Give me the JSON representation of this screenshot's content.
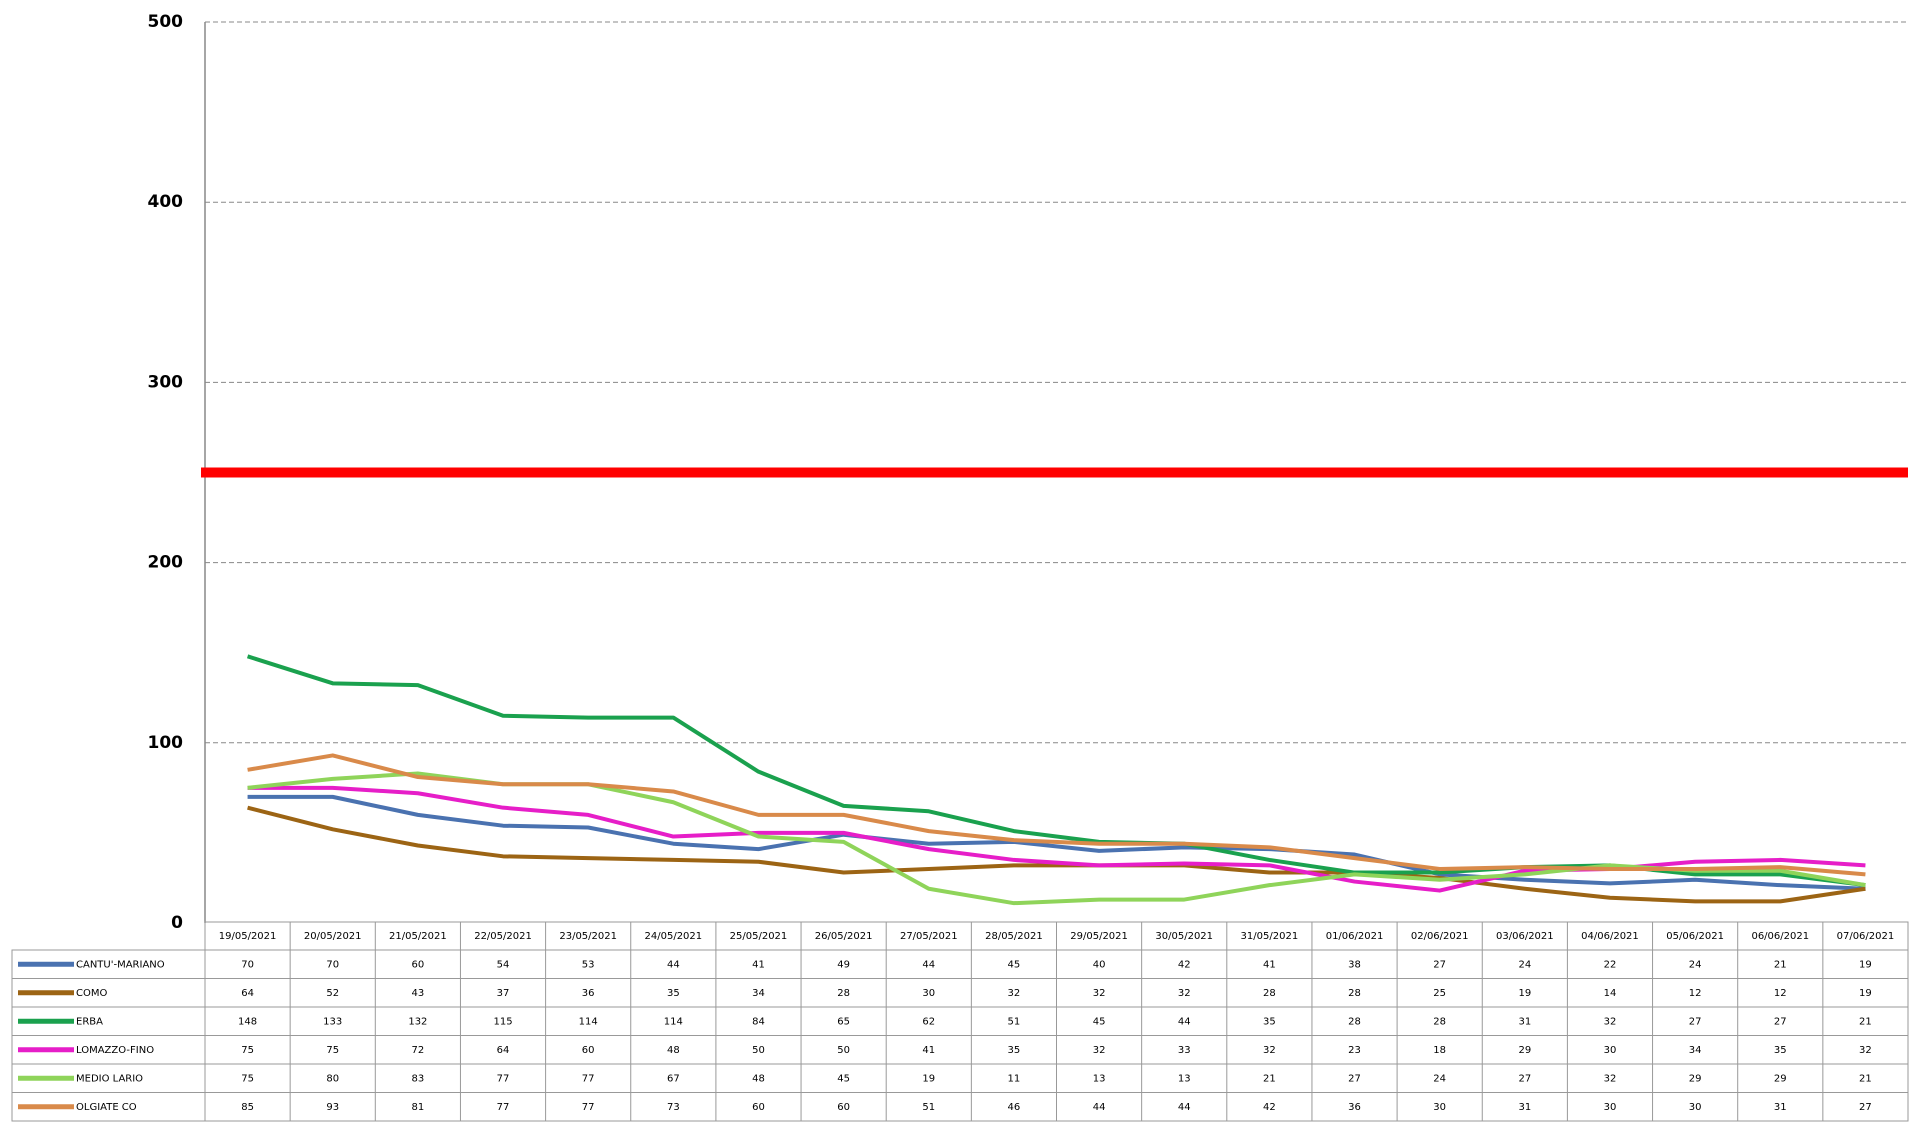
{
  "chart_data": {
    "type": "line",
    "categories": [
      "19/05/2021",
      "20/05/2021",
      "21/05/2021",
      "22/05/2021",
      "23/05/2021",
      "24/05/2021",
      "25/05/2021",
      "26/05/2021",
      "27/05/2021",
      "28/05/2021",
      "29/05/2021",
      "30/05/2021",
      "31/05/2021",
      "01/06/2021",
      "02/06/2021",
      "03/06/2021",
      "04/06/2021",
      "05/06/2021",
      "06/06/2021",
      "07/06/2021"
    ],
    "series": [
      {
        "name": "CANTU'-MARIANO",
        "color": "#4a72b0",
        "values": [
          70,
          70,
          60,
          54,
          53,
          44,
          41,
          49,
          44,
          45,
          40,
          42,
          41,
          38,
          27,
          24,
          22,
          24,
          21,
          19
        ]
      },
      {
        "name": "COMO",
        "color": "#9c6414",
        "values": [
          64,
          52,
          43,
          37,
          36,
          35,
          34,
          28,
          30,
          32,
          32,
          32,
          28,
          28,
          25,
          19,
          14,
          12,
          12,
          19
        ]
      },
      {
        "name": "ERBA",
        "color": "#1aa14e",
        "values": [
          148,
          133,
          132,
          115,
          114,
          114,
          84,
          65,
          62,
          51,
          45,
          44,
          35,
          28,
          28,
          31,
          32,
          27,
          27,
          21
        ]
      },
      {
        "name": "LOMAZZO-FINO",
        "color": "#e61ec8",
        "values": [
          75,
          75,
          72,
          64,
          60,
          48,
          50,
          50,
          41,
          35,
          32,
          33,
          32,
          23,
          18,
          29,
          30,
          34,
          35,
          32
        ]
      },
      {
        "name": "MEDIO LARIO",
        "color": "#8fd45a",
        "values": [
          75,
          80,
          83,
          77,
          77,
          67,
          48,
          45,
          19,
          11,
          13,
          13,
          21,
          27,
          24,
          27,
          32,
          29,
          29,
          21
        ]
      },
      {
        "name": "OLGIATE CO",
        "color": "#d98a4a",
        "values": [
          85,
          93,
          81,
          77,
          77,
          73,
          60,
          60,
          51,
          46,
          44,
          44,
          42,
          36,
          30,
          31,
          30,
          30,
          31,
          27
        ]
      }
    ],
    "ylim": [
      0,
      500
    ],
    "yticks": [
      0,
      100,
      200,
      300,
      400,
      500
    ],
    "grid": true,
    "reference_line": {
      "value": 250,
      "color": "#ff0000"
    }
  }
}
